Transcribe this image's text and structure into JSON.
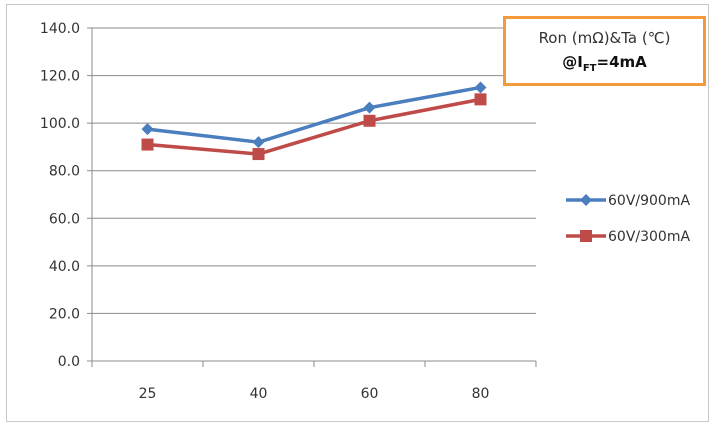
{
  "chart_data": {
    "type": "line",
    "categories": [
      "25",
      "40",
      "60",
      "80"
    ],
    "ylim": [
      0,
      140
    ],
    "y_ticks": [
      "0.0",
      "20.0",
      "40.0",
      "60.0",
      "80.0",
      "100.0",
      "120.0",
      "140.0"
    ],
    "grid": "horizontal",
    "legend_position": "right",
    "series": [
      {
        "name": "60V/900mA",
        "values": [
          97.5,
          92,
          106.5,
          115
        ],
        "color": "#4a7ebf",
        "marker": "diamond"
      },
      {
        "name": "60V/300mA",
        "values": [
          91,
          87,
          101,
          110
        ],
        "color": "#bf4b48",
        "marker": "square"
      }
    ],
    "annotation": {
      "line1": "Ron (mΩ)&Ta (℃)",
      "line2_prefix": "@I",
      "line2_sub": "FT",
      "line2_suffix": "=4mA",
      "border_color": "#f39a3a"
    }
  }
}
